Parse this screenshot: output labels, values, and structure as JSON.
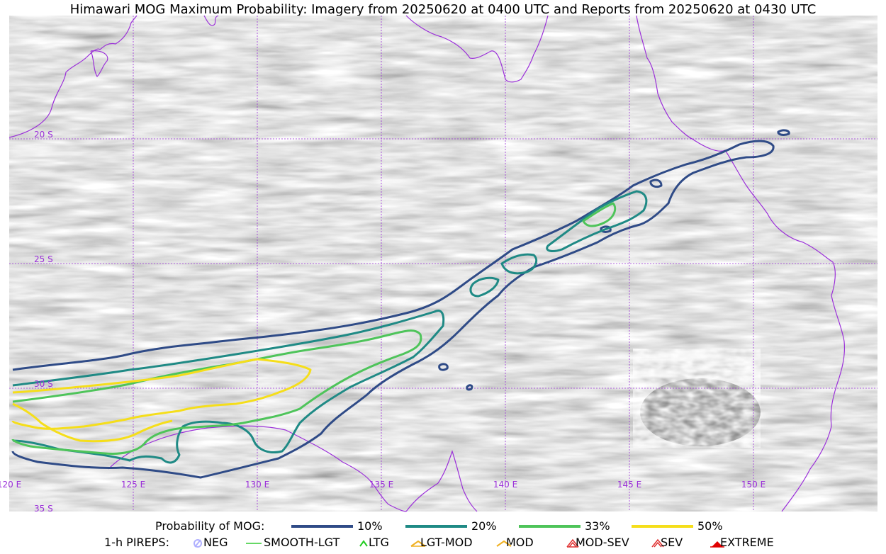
{
  "title": "Himawari MOG Maximum Probability: Imagery from 20250620 at 0400 UTC and Reports from 20250620 at 0430 UTC",
  "map": {
    "lon_labels": [
      "120 E",
      "125 E",
      "130 E",
      "135 E",
      "140 E",
      "145 E",
      "150 E"
    ],
    "lat_labels": [
      "20 S",
      "25 S",
      "30 S",
      "35 S"
    ],
    "graticule_color": "#9b30d9",
    "coast_color": "#9b30d9",
    "background": "grayscale satellite imagery"
  },
  "legend": {
    "prob_title": "Probability of MOG:",
    "prob_levels": [
      {
        "label": "10%",
        "color": "#2f4b87"
      },
      {
        "label": "20%",
        "color": "#1f8a85"
      },
      {
        "label": "33%",
        "color": "#4ec45a"
      },
      {
        "label": "50%",
        "color": "#f5de1a"
      }
    ],
    "pirep_title": "1-h PIREPS:",
    "pireps": [
      {
        "label": "NEG",
        "color": "#b0b0ff",
        "icon": "neg-icon"
      },
      {
        "label": "SMOOTH-LGT",
        "color": "#33cc33",
        "icon": "smooth-lgt-icon"
      },
      {
        "label": "LTG",
        "color": "#22cc22",
        "icon": "ltg-icon"
      },
      {
        "label": "LGT-MOD",
        "color": "#f0b020",
        "icon": "lgt-mod-icon"
      },
      {
        "label": "MOD",
        "color": "#f0b020",
        "icon": "mod-icon"
      },
      {
        "label": "MOD-SEV",
        "color": "#e03030",
        "icon": "mod-sev-icon"
      },
      {
        "label": "SEV",
        "color": "#e03030",
        "icon": "sev-icon"
      },
      {
        "label": "EXTREME",
        "color": "#e00000",
        "icon": "extreme-icon"
      }
    ]
  }
}
